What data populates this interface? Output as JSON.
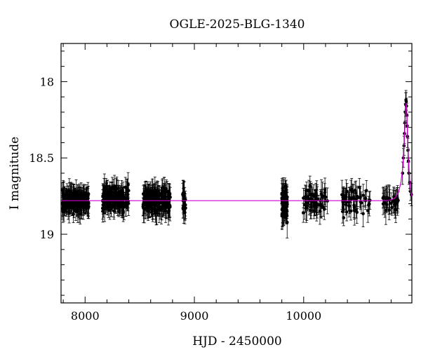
{
  "chart_data": {
    "type": "scatter",
    "title": "OGLE-2025-BLG-1340",
    "xlabel": "HJD - 2450000",
    "ylabel": "I magnitude",
    "xlim": [
      7780,
      10990
    ],
    "ylim": [
      19.45,
      17.75
    ],
    "y_inverted": true,
    "x_ticks": [
      8000,
      9000,
      10000
    ],
    "y_ticks": [
      18,
      18.5,
      19
    ],
    "grid": false,
    "legend": "none",
    "colors": {
      "data": "#000000",
      "model": "#cc00cc",
      "frame": "#000000"
    },
    "model": {
      "name": "",
      "baseline_mag": 18.78,
      "peak_x": 10938,
      "peak_mag": 18.14,
      "points": [
        [
          7780,
          18.78
        ],
        [
          10750,
          18.78
        ],
        [
          10800,
          18.775
        ],
        [
          10840,
          18.76
        ],
        [
          10870,
          18.72
        ],
        [
          10890,
          18.66
        ],
        [
          10905,
          18.57
        ],
        [
          10915,
          18.47
        ],
        [
          10925,
          18.32
        ],
        [
          10932,
          18.2
        ],
        [
          10938,
          18.14
        ],
        [
          10944,
          18.2
        ],
        [
          10950,
          18.33
        ],
        [
          10958,
          18.49
        ],
        [
          10968,
          18.63
        ],
        [
          10980,
          18.72
        ],
        [
          10990,
          18.75
        ]
      ]
    },
    "data_seasons": [
      {
        "x_range": [
          7790,
          8040
        ],
        "mean_mag": 18.78,
        "scatter": 0.09,
        "error": 0.06,
        "n": 170
      },
      {
        "x_range": [
          8160,
          8400
        ],
        "mean_mag": 18.77,
        "scatter": 0.09,
        "error": 0.06,
        "n": 160
      },
      {
        "x_range": [
          8530,
          8780
        ],
        "mean_mag": 18.78,
        "scatter": 0.1,
        "error": 0.07,
        "n": 170
      },
      {
        "x_range": [
          8890,
          8920
        ],
        "mean_mag": 18.78,
        "scatter": 0.1,
        "error": 0.07,
        "n": 20
      },
      {
        "x_range": [
          9800,
          9850
        ],
        "mean_mag": 18.8,
        "scatter": 0.11,
        "error": 0.08,
        "n": 60
      },
      {
        "x_range": [
          9990,
          10220
        ],
        "mean_mag": 18.78,
        "scatter": 0.1,
        "error": 0.07,
        "n": 60
      },
      {
        "x_range": [
          10350,
          10620
        ],
        "mean_mag": 18.78,
        "scatter": 0.1,
        "error": 0.07,
        "n": 55
      },
      {
        "x_range": [
          10720,
          10870
        ],
        "mean_mag": 18.79,
        "scatter": 0.09,
        "error": 0.07,
        "n": 35
      }
    ],
    "peak_points": [
      [
        10905,
        18.6
      ],
      [
        10912,
        18.5
      ],
      [
        10918,
        18.42
      ],
      [
        10922,
        18.34
      ],
      [
        10926,
        18.27
      ],
      [
        10930,
        18.2
      ],
      [
        10933,
        18.15
      ],
      [
        10936,
        18.12
      ],
      [
        10938,
        18.13
      ],
      [
        10941,
        18.16
      ],
      [
        10944,
        18.22
      ],
      [
        10947,
        18.29
      ],
      [
        10950,
        18.36
      ],
      [
        10954,
        18.45
      ],
      [
        10958,
        18.52
      ],
      [
        10963,
        18.6
      ],
      [
        10970,
        18.66
      ],
      [
        10978,
        18.72
      ],
      [
        10986,
        18.74
      ]
    ]
  }
}
